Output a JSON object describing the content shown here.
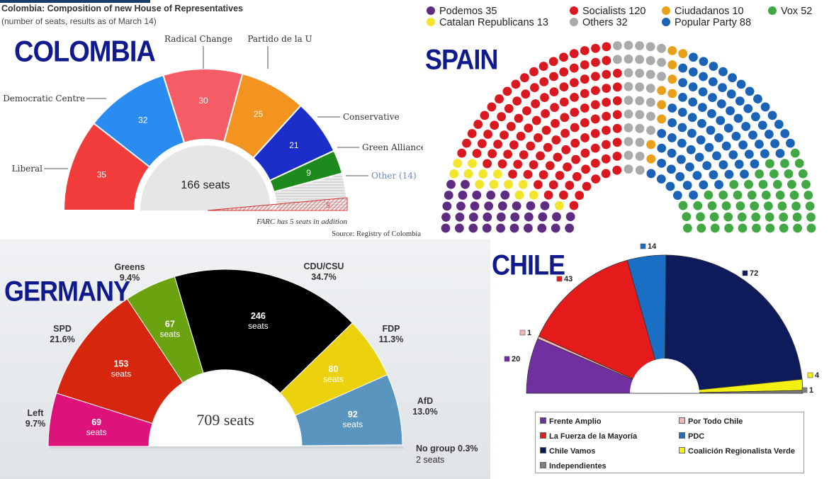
{
  "colombia": {
    "country_label": "COLOMBIA",
    "title": "Colombia: Composition of new House of Representatives",
    "subtitle": "(number of seats, results as of March 14)",
    "center_label": "166 seats",
    "note": "FARC has 5 seats in addition",
    "source": "Source: Registry of Colombia"
  },
  "spain": {
    "country_label": "SPAIN"
  },
  "germany": {
    "country_label": "GERMANY",
    "center_label": "709 seats",
    "seats_word": "seats",
    "no_group": {
      "name": "No group 0.3%",
      "seats_text": "2 seats",
      "value": 2
    }
  },
  "chile": {
    "country_label": "CHILE"
  },
  "chart_data": [
    {
      "type": "pie",
      "name": "Colombia",
      "title": "Colombia: Composition of new House of Representatives",
      "subtitle": "(number of seats, results as of March 14)",
      "total_label": "166 seats",
      "slices": [
        {
          "label": "Liberal",
          "value": 35,
          "value_label": "35",
          "color": "#f23b3b"
        },
        {
          "label": "Democratic Centre",
          "value": 32,
          "value_label": "32",
          "color": "#2a8cf0"
        },
        {
          "label": "Radical Change",
          "value": 30,
          "value_label": "30",
          "color": "#f55c66"
        },
        {
          "label": "Partido de la U",
          "value": 25,
          "value_label": "25",
          "color": "#f2941f"
        },
        {
          "label": "Conservative",
          "value": 21,
          "value_label": "21",
          "color": "#1c2ec9"
        },
        {
          "label": "Green Alliance",
          "value": 9,
          "value_label": "9",
          "color": "#1c8a1c"
        },
        {
          "label": "Other (14)",
          "value": 14,
          "value_label": "",
          "color": "#dcdcdc"
        }
      ],
      "annotation": "FARC has 5 seats in addition",
      "annotation_value": "5",
      "source": "Source: Registry of Colombia"
    },
    {
      "type": "scatter",
      "name": "Spain",
      "legend_placement": "top",
      "series": [
        {
          "name": "Podemos 35",
          "value": 35,
          "color": "#5e2d82"
        },
        {
          "name": "Catalan Republicans 13",
          "value": 13,
          "color": "#f2e52b"
        },
        {
          "name": "Socialists 120",
          "value": 120,
          "color": "#d9181f"
        },
        {
          "name": "Others 32",
          "value": 32,
          "color": "#aaaaaa"
        },
        {
          "name": "Ciudadanos 10",
          "value": 10,
          "color": "#e89f19"
        },
        {
          "name": "Popular Party 88",
          "value": 88,
          "color": "#1b63b6"
        },
        {
          "name": "Vox 52",
          "value": 52,
          "color": "#41a843"
        }
      ]
    },
    {
      "type": "pie",
      "name": "Germany",
      "total_label": "709 seats",
      "slices": [
        {
          "label": "Left",
          "percent": "9.7%",
          "value": 69,
          "color": "#dd137b"
        },
        {
          "label": "SPD",
          "percent": "21.6%",
          "value": 153,
          "color": "#d6260e"
        },
        {
          "label": "Greens",
          "percent": "9.4%",
          "value": 67,
          "color": "#6aa30f"
        },
        {
          "label": "CDU/CSU",
          "percent": "34.7%",
          "value": 246,
          "color": "#000000"
        },
        {
          "label": "FDP",
          "percent": "11.3%",
          "value": 80,
          "color": "#ecd10e"
        },
        {
          "label": "AfD",
          "percent": "13.0%",
          "value": 92,
          "color": "#5a95c0"
        }
      ]
    },
    {
      "type": "pie",
      "name": "Chile",
      "slices": [
        {
          "label": "Frente Amplio",
          "value": 20,
          "color": "#7030a0"
        },
        {
          "label": "Por Todo Chile",
          "value": 1,
          "color": "#f5b5b5"
        },
        {
          "label": "La Fuerza de la Mayoría",
          "value": 43,
          "color": "#e51a1a"
        },
        {
          "label": "PDC",
          "value": 14,
          "color": "#1a6fc4"
        },
        {
          "label": "Chile Vamos",
          "value": 72,
          "color": "#0d1b5a"
        },
        {
          "label": "Coalición Regionalista Verde",
          "value": 4,
          "color": "#f5f014"
        },
        {
          "label": "Independientes",
          "value": 1,
          "color": "#808080"
        }
      ]
    }
  ]
}
